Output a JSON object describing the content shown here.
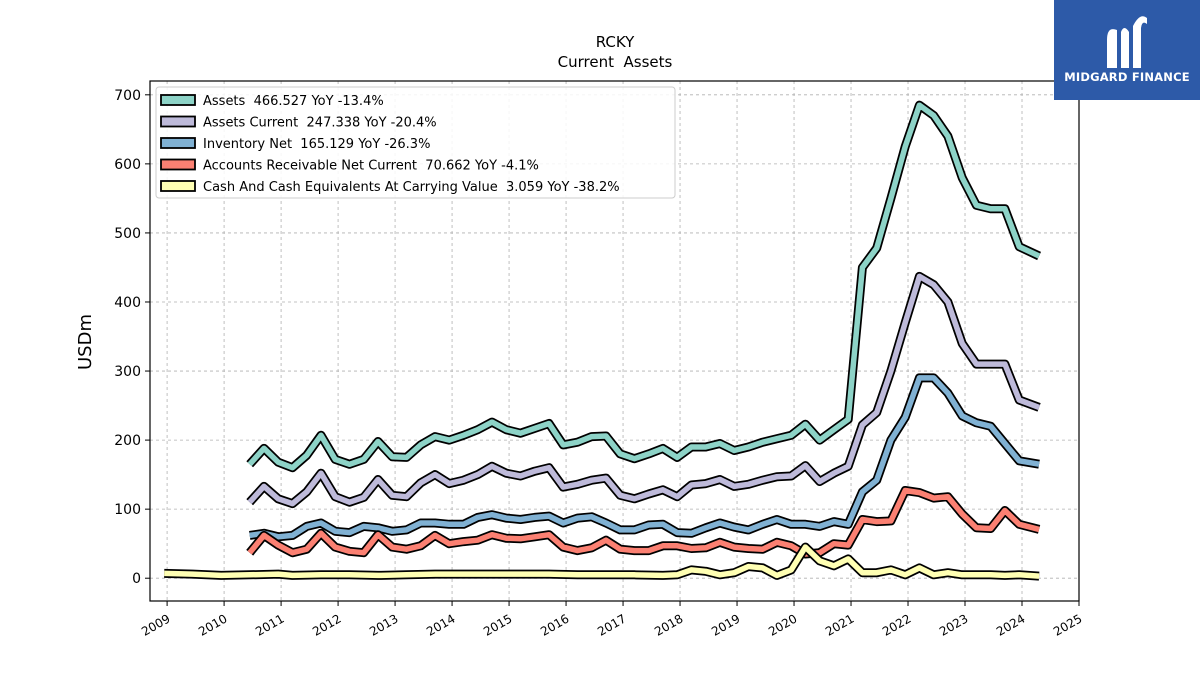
{
  "chart_data": {
    "type": "line",
    "title": "RCKY",
    "subtitle": "Current  Assets",
    "ylabel": "USDm",
    "xlabel": "",
    "ylim": [
      -33,
      720
    ],
    "xlim": [
      2008.7,
      2025.0
    ],
    "yticks": [
      0,
      100,
      200,
      300,
      400,
      500,
      600,
      700
    ],
    "xticks": [
      2009,
      2010,
      2011,
      2012,
      2013,
      2014,
      2015,
      2016,
      2017,
      2018,
      2019,
      2020,
      2021,
      2022,
      2023,
      2024,
      2025
    ],
    "grid": true,
    "legend_position": "top-left",
    "series": [
      {
        "name": "Assets",
        "legend": "Assets  466.527 YoY -13.4%",
        "color": "#8dd3c7",
        "points": [
          [
            2010.45,
            165
          ],
          [
            2010.7,
            188
          ],
          [
            2010.95,
            168
          ],
          [
            2011.2,
            160
          ],
          [
            2011.45,
            178
          ],
          [
            2011.7,
            207
          ],
          [
            2011.95,
            172
          ],
          [
            2012.2,
            165
          ],
          [
            2012.45,
            172
          ],
          [
            2012.7,
            198
          ],
          [
            2012.95,
            176
          ],
          [
            2013.2,
            175
          ],
          [
            2013.45,
            193
          ],
          [
            2013.7,
            205
          ],
          [
            2013.95,
            200
          ],
          [
            2014.2,
            207
          ],
          [
            2014.45,
            215
          ],
          [
            2014.7,
            226
          ],
          [
            2014.95,
            215
          ],
          [
            2015.2,
            210
          ],
          [
            2015.45,
            217
          ],
          [
            2015.7,
            224
          ],
          [
            2015.95,
            193
          ],
          [
            2016.2,
            197
          ],
          [
            2016.45,
            205
          ],
          [
            2016.7,
            206
          ],
          [
            2016.95,
            180
          ],
          [
            2017.2,
            173
          ],
          [
            2017.45,
            180
          ],
          [
            2017.7,
            188
          ],
          [
            2017.95,
            175
          ],
          [
            2018.2,
            190
          ],
          [
            2018.45,
            190
          ],
          [
            2018.7,
            195
          ],
          [
            2018.95,
            185
          ],
          [
            2019.2,
            190
          ],
          [
            2019.45,
            197
          ],
          [
            2019.7,
            202
          ],
          [
            2019.95,
            207
          ],
          [
            2020.2,
            223
          ],
          [
            2020.45,
            200
          ],
          [
            2020.7,
            215
          ],
          [
            2020.95,
            230
          ],
          [
            2021.2,
            450
          ],
          [
            2021.45,
            478
          ],
          [
            2021.7,
            550
          ],
          [
            2021.95,
            625
          ],
          [
            2022.2,
            685
          ],
          [
            2022.45,
            670
          ],
          [
            2022.7,
            640
          ],
          [
            2022.95,
            580
          ],
          [
            2023.2,
            540
          ],
          [
            2023.45,
            535
          ],
          [
            2023.7,
            535
          ],
          [
            2023.95,
            480
          ],
          [
            2024.3,
            466.527
          ]
        ]
      },
      {
        "name": "Assets Current",
        "legend": "Assets Current  247.338 YoY -20.4%",
        "color": "#bebada",
        "points": [
          [
            2010.45,
            110
          ],
          [
            2010.7,
            133
          ],
          [
            2010.95,
            115
          ],
          [
            2011.2,
            108
          ],
          [
            2011.45,
            125
          ],
          [
            2011.7,
            152
          ],
          [
            2011.95,
            118
          ],
          [
            2012.2,
            110
          ],
          [
            2012.45,
            117
          ],
          [
            2012.7,
            143
          ],
          [
            2012.95,
            120
          ],
          [
            2013.2,
            118
          ],
          [
            2013.45,
            138
          ],
          [
            2013.7,
            150
          ],
          [
            2013.95,
            137
          ],
          [
            2014.2,
            142
          ],
          [
            2014.45,
            150
          ],
          [
            2014.7,
            162
          ],
          [
            2014.95,
            152
          ],
          [
            2015.2,
            148
          ],
          [
            2015.45,
            155
          ],
          [
            2015.7,
            160
          ],
          [
            2015.95,
            132
          ],
          [
            2016.2,
            136
          ],
          [
            2016.45,
            142
          ],
          [
            2016.7,
            145
          ],
          [
            2016.95,
            120
          ],
          [
            2017.2,
            115
          ],
          [
            2017.45,
            122
          ],
          [
            2017.7,
            128
          ],
          [
            2017.95,
            118
          ],
          [
            2018.2,
            135
          ],
          [
            2018.45,
            137
          ],
          [
            2018.7,
            143
          ],
          [
            2018.95,
            133
          ],
          [
            2019.2,
            136
          ],
          [
            2019.45,
            142
          ],
          [
            2019.7,
            147
          ],
          [
            2019.95,
            148
          ],
          [
            2020.2,
            163
          ],
          [
            2020.45,
            140
          ],
          [
            2020.7,
            152
          ],
          [
            2020.95,
            162
          ],
          [
            2021.2,
            222
          ],
          [
            2021.45,
            240
          ],
          [
            2021.7,
            300
          ],
          [
            2021.95,
            370
          ],
          [
            2022.2,
            437
          ],
          [
            2022.45,
            425
          ],
          [
            2022.7,
            400
          ],
          [
            2022.95,
            340
          ],
          [
            2023.2,
            310
          ],
          [
            2023.45,
            310
          ],
          [
            2023.7,
            310
          ],
          [
            2023.95,
            258
          ],
          [
            2024.3,
            247.338
          ]
        ]
      },
      {
        "name": "Inventory Net",
        "legend": "Inventory Net  165.129 YoY -26.3%",
        "color": "#80b1d3",
        "points": [
          [
            2010.45,
            62
          ],
          [
            2010.7,
            65
          ],
          [
            2010.95,
            60
          ],
          [
            2011.2,
            62
          ],
          [
            2011.45,
            75
          ],
          [
            2011.7,
            80
          ],
          [
            2011.95,
            68
          ],
          [
            2012.2,
            66
          ],
          [
            2012.45,
            75
          ],
          [
            2012.7,
            73
          ],
          [
            2012.95,
            68
          ],
          [
            2013.2,
            70
          ],
          [
            2013.45,
            80
          ],
          [
            2013.7,
            80
          ],
          [
            2013.95,
            78
          ],
          [
            2014.2,
            78
          ],
          [
            2014.45,
            88
          ],
          [
            2014.7,
            92
          ],
          [
            2014.95,
            87
          ],
          [
            2015.2,
            85
          ],
          [
            2015.45,
            88
          ],
          [
            2015.7,
            90
          ],
          [
            2015.95,
            80
          ],
          [
            2016.2,
            87
          ],
          [
            2016.45,
            89
          ],
          [
            2016.7,
            80
          ],
          [
            2016.95,
            70
          ],
          [
            2017.2,
            70
          ],
          [
            2017.45,
            77
          ],
          [
            2017.7,
            78
          ],
          [
            2017.95,
            66
          ],
          [
            2018.2,
            65
          ],
          [
            2018.45,
            73
          ],
          [
            2018.7,
            80
          ],
          [
            2018.95,
            74
          ],
          [
            2019.2,
            70
          ],
          [
            2019.45,
            78
          ],
          [
            2019.7,
            85
          ],
          [
            2019.95,
            78
          ],
          [
            2020.2,
            78
          ],
          [
            2020.45,
            75
          ],
          [
            2020.7,
            82
          ],
          [
            2020.95,
            78
          ],
          [
            2021.2,
            125
          ],
          [
            2021.45,
            142
          ],
          [
            2021.7,
            200
          ],
          [
            2021.95,
            233
          ],
          [
            2022.2,
            290
          ],
          [
            2022.45,
            290
          ],
          [
            2022.7,
            268
          ],
          [
            2022.95,
            235
          ],
          [
            2023.2,
            225
          ],
          [
            2023.45,
            220
          ],
          [
            2023.7,
            195
          ],
          [
            2023.95,
            170
          ],
          [
            2024.3,
            165.129
          ]
        ]
      },
      {
        "name": "Accounts Receivable Net Current",
        "legend": "Accounts Receivable Net Current  70.662 YoY -4.1%",
        "color": "#fb8072",
        "points": [
          [
            2010.45,
            37
          ],
          [
            2010.7,
            62
          ],
          [
            2010.95,
            48
          ],
          [
            2011.2,
            37
          ],
          [
            2011.45,
            42
          ],
          [
            2011.7,
            65
          ],
          [
            2011.95,
            45
          ],
          [
            2012.2,
            39
          ],
          [
            2012.45,
            37
          ],
          [
            2012.7,
            63
          ],
          [
            2012.95,
            45
          ],
          [
            2013.2,
            42
          ],
          [
            2013.45,
            47
          ],
          [
            2013.7,
            62
          ],
          [
            2013.95,
            50
          ],
          [
            2014.2,
            53
          ],
          [
            2014.45,
            55
          ],
          [
            2014.7,
            63
          ],
          [
            2014.95,
            58
          ],
          [
            2015.2,
            57
          ],
          [
            2015.45,
            60
          ],
          [
            2015.7,
            63
          ],
          [
            2015.95,
            45
          ],
          [
            2016.2,
            40
          ],
          [
            2016.45,
            44
          ],
          [
            2016.7,
            55
          ],
          [
            2016.95,
            42
          ],
          [
            2017.2,
            40
          ],
          [
            2017.45,
            40
          ],
          [
            2017.7,
            47
          ],
          [
            2017.95,
            47
          ],
          [
            2018.2,
            43
          ],
          [
            2018.45,
            44
          ],
          [
            2018.7,
            52
          ],
          [
            2018.95,
            45
          ],
          [
            2019.2,
            43
          ],
          [
            2019.45,
            42
          ],
          [
            2019.7,
            52
          ],
          [
            2019.95,
            47
          ],
          [
            2020.2,
            35
          ],
          [
            2020.45,
            37
          ],
          [
            2020.7,
            50
          ],
          [
            2020.95,
            48
          ],
          [
            2021.2,
            85
          ],
          [
            2021.45,
            82
          ],
          [
            2021.7,
            83
          ],
          [
            2021.95,
            127
          ],
          [
            2022.2,
            124
          ],
          [
            2022.45,
            116
          ],
          [
            2022.7,
            118
          ],
          [
            2022.95,
            93
          ],
          [
            2023.2,
            73
          ],
          [
            2023.45,
            72
          ],
          [
            2023.7,
            98
          ],
          [
            2023.95,
            78
          ],
          [
            2024.3,
            70.662
          ]
        ]
      },
      {
        "name": "Cash And Cash Equivalents At Carrying Value",
        "legend": "Cash And Cash Equivalents At Carrying Value  3.059 YoY -38.2%",
        "color": "#ffffb3",
        "points": [
          [
            2008.95,
            7
          ],
          [
            2009.45,
            6
          ],
          [
            2009.95,
            4
          ],
          [
            2010.45,
            5
          ],
          [
            2010.95,
            6
          ],
          [
            2011.2,
            4
          ],
          [
            2011.7,
            5
          ],
          [
            2012.2,
            5
          ],
          [
            2012.7,
            4
          ],
          [
            2013.2,
            5
          ],
          [
            2013.7,
            6
          ],
          [
            2014.2,
            6
          ],
          [
            2014.7,
            6
          ],
          [
            2015.2,
            6
          ],
          [
            2015.7,
            6
          ],
          [
            2016.2,
            5
          ],
          [
            2016.7,
            5
          ],
          [
            2017.2,
            5
          ],
          [
            2017.7,
            4
          ],
          [
            2017.95,
            5
          ],
          [
            2018.2,
            12
          ],
          [
            2018.45,
            10
          ],
          [
            2018.7,
            5
          ],
          [
            2018.95,
            8
          ],
          [
            2019.2,
            17
          ],
          [
            2019.45,
            15
          ],
          [
            2019.7,
            4
          ],
          [
            2019.95,
            12
          ],
          [
            2020.2,
            45
          ],
          [
            2020.45,
            25
          ],
          [
            2020.7,
            18
          ],
          [
            2020.95,
            28
          ],
          [
            2021.2,
            8
          ],
          [
            2021.45,
            8
          ],
          [
            2021.7,
            12
          ],
          [
            2021.95,
            5
          ],
          [
            2022.2,
            15
          ],
          [
            2022.45,
            5
          ],
          [
            2022.7,
            8
          ],
          [
            2022.95,
            5
          ],
          [
            2023.45,
            5
          ],
          [
            2023.7,
            4
          ],
          [
            2023.95,
            5
          ],
          [
            2024.3,
            3.059
          ]
        ]
      }
    ]
  },
  "logo": {
    "text": "MIDGARD FINANCE"
  }
}
